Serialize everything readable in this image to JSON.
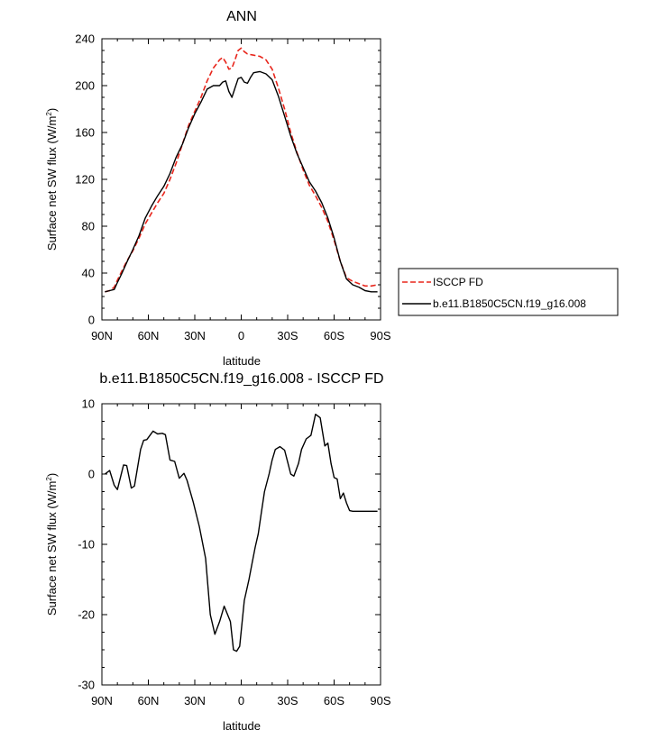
{
  "chart_data": [
    {
      "type": "line",
      "title": "ANN",
      "xlabel": "latitude",
      "ylabel": "Surface net SW flux (W/m",
      "ylabel_sup": "2",
      "ylabel_tail": ")",
      "xlim": [
        90,
        -90
      ],
      "ylim": [
        0,
        240
      ],
      "x_ticks": [
        {
          "value": 90,
          "label": "90N"
        },
        {
          "value": 60,
          "label": "60N"
        },
        {
          "value": 30,
          "label": "30N"
        },
        {
          "value": 0,
          "label": "0"
        },
        {
          "value": -30,
          "label": "30S"
        },
        {
          "value": -60,
          "label": "60S"
        },
        {
          "value": -90,
          "label": "90S"
        }
      ],
      "y_ticks": [
        0,
        40,
        80,
        120,
        160,
        200,
        240
      ],
      "legend_position": "right",
      "series": [
        {
          "name": "ISCCP FD",
          "color": "#e8261c",
          "dash": "dashed",
          "x": [
            88,
            85,
            82,
            80,
            77,
            74,
            70,
            66,
            62,
            58,
            54,
            50,
            46,
            42,
            38,
            34,
            30,
            26,
            22,
            18,
            14,
            12,
            10,
            8,
            6,
            4,
            2,
            0,
            -2,
            -4,
            -8,
            -12,
            -16,
            -20,
            -24,
            -28,
            -32,
            -36,
            -40,
            -44,
            -48,
            -52,
            -56,
            -60,
            -64,
            -68,
            -72,
            -76,
            -80,
            -84,
            -88
          ],
          "y": [
            24,
            25,
            28,
            34,
            42,
            50,
            59,
            70,
            82,
            91,
            100,
            108,
            120,
            134,
            150,
            166,
            178,
            190,
            204,
            215,
            222,
            224,
            220,
            214,
            215,
            222,
            230,
            232,
            229,
            227,
            226,
            225,
            222,
            214,
            198,
            180,
            160,
            143,
            128,
            115,
            106,
            96,
            84,
            68,
            50,
            36,
            33,
            31,
            29,
            29,
            30
          ]
        },
        {
          "name": "b.e11.B1850C5CN.f19_g16.008",
          "color": "#000000",
          "dash": "solid",
          "x": [
            88,
            85,
            82,
            80,
            77,
            74,
            70,
            66,
            62,
            58,
            54,
            50,
            46,
            42,
            38,
            34,
            30,
            26,
            22,
            18,
            14,
            12,
            10,
            8,
            6,
            4,
            2,
            0,
            -2,
            -4,
            -6,
            -8,
            -12,
            -16,
            -20,
            -24,
            -28,
            -32,
            -36,
            -40,
            -44,
            -48,
            -52,
            -56,
            -60,
            -64,
            -68,
            -72,
            -76,
            -80,
            -84,
            -88
          ],
          "y": [
            24,
            25,
            26,
            32,
            40,
            49,
            60,
            72,
            87,
            97,
            106,
            114,
            125,
            139,
            150,
            164,
            176,
            186,
            197,
            200,
            200,
            203,
            204,
            195,
            190,
            198,
            206,
            207,
            203,
            202,
            207,
            211,
            212,
            210,
            205,
            191,
            174,
            157,
            142,
            130,
            118,
            110,
            100,
            87,
            70,
            50,
            35,
            30,
            28,
            25,
            24,
            24
          ]
        }
      ]
    },
    {
      "type": "line",
      "title": "b.e11.B1850C5CN.f19_g16.008 - ISCCP FD",
      "xlabel": "latitude",
      "ylabel": "Surface net SW flux (W/m",
      "ylabel_sup": "2",
      "ylabel_tail": ")",
      "xlim": [
        90,
        -90
      ],
      "ylim": [
        -30,
        10
      ],
      "x_ticks": [
        {
          "value": 90,
          "label": "90N"
        },
        {
          "value": 60,
          "label": "60N"
        },
        {
          "value": 30,
          "label": "30N"
        },
        {
          "value": 0,
          "label": "0"
        },
        {
          "value": -30,
          "label": "30S"
        },
        {
          "value": -60,
          "label": "60S"
        },
        {
          "value": -90,
          "label": "90S"
        }
      ],
      "y_ticks": [
        -30,
        -20,
        -10,
        0,
        10
      ],
      "series": [
        {
          "color": "#000000",
          "dash": "solid",
          "x": [
            88,
            85,
            82,
            80,
            76,
            74,
            71,
            69,
            65,
            63,
            61,
            57,
            54,
            51,
            49,
            46,
            43,
            40,
            37,
            35,
            31,
            27,
            23,
            20,
            17,
            14,
            11,
            7,
            5,
            3,
            1,
            -2,
            -5,
            -7,
            -9,
            -11,
            -13,
            -15,
            -18,
            -20,
            -22,
            -25,
            -28,
            -30,
            -32,
            -34,
            -37,
            -39,
            -42,
            -45,
            -48,
            -51,
            -54,
            -56,
            -58,
            -60,
            -62,
            -64,
            -66,
            -68,
            -70,
            -72,
            -74,
            -76,
            -78,
            -80,
            -82,
            -84,
            -86,
            -88
          ],
          "y": [
            0.0,
            0.5,
            -1.6,
            -2.2,
            1.3,
            1.2,
            -2.0,
            -1.7,
            3.5,
            4.8,
            4.9,
            6.1,
            5.7,
            5.8,
            5.6,
            2.0,
            1.8,
            -0.6,
            0.1,
            -0.9,
            -4.0,
            -7.5,
            -12.0,
            -20.0,
            -22.8,
            -21.0,
            -18.8,
            -21.0,
            -25.0,
            -25.2,
            -24.5,
            -18.0,
            -15.0,
            -12.7,
            -10.4,
            -8.5,
            -5.5,
            -2.5,
            0.0,
            2.0,
            3.5,
            3.9,
            3.4,
            1.7,
            0.0,
            -0.3,
            1.5,
            3.5,
            5.0,
            5.5,
            8.5,
            8.0,
            4.0,
            4.4,
            1.5,
            -0.5,
            -0.7,
            -3.5,
            -2.7,
            -4.1,
            -5.2,
            -5.3,
            -5.3,
            -5.3,
            -5.3,
            -5.3,
            -5.3,
            -5.3,
            -5.3,
            -5.3
          ]
        }
      ]
    }
  ]
}
